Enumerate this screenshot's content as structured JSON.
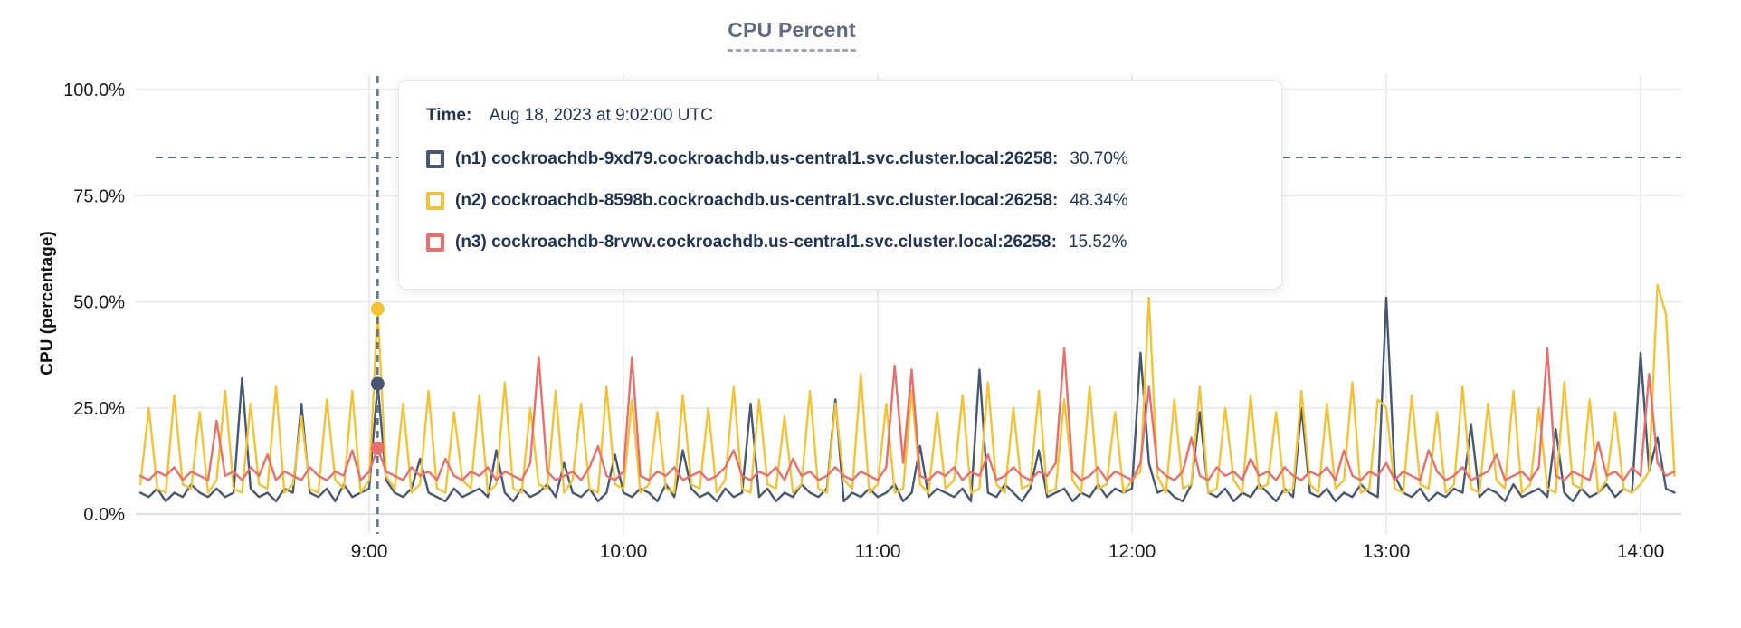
{
  "title": "CPU Percent",
  "axes": {
    "ylabel": "CPU (percentage)",
    "ytick_labels": [
      "0.0%",
      "25.0%",
      "50.0%",
      "75.0%",
      "100.0%"
    ],
    "xtick_labels": [
      "9:00",
      "10:00",
      "11:00",
      "12:00",
      "13:00",
      "14:00"
    ]
  },
  "tooltip": {
    "time_label": "Time:",
    "time_value": "Aug 18, 2023 at 9:02:00 UTC",
    "rows": [
      {
        "label": "(n1) cockroachdb-9xd79.cockroachdb.us-central1.svc.cluster.local:26258:",
        "value": "30.70%",
        "color": "#475872"
      },
      {
        "label": "(n2) cockroachdb-8598b.cockroachdb.us-central1.svc.cluster.local:26258:",
        "value": "48.34%",
        "color": "#F3C336"
      },
      {
        "label": "(n3) cockroachdb-8rvwv.cockroachdb.us-central1.svc.cluster.local:26258:",
        "value": "15.52%",
        "color": "#E8706C"
      }
    ]
  },
  "colors": {
    "title": "#5F6C87",
    "axis_text": "#1a1a1a",
    "grid": "#ececec",
    "grid_zero": "#e0e0e0",
    "guide": "#607286",
    "tooltip_text": "#1E3556",
    "background": "#FFFFFF"
  },
  "chart_data": {
    "type": "line",
    "title": "CPU Percent",
    "xlabel": "",
    "ylabel": "CPU (percentage)",
    "ylim": [
      0,
      100
    ],
    "grid": true,
    "legend_position": "tooltip",
    "yticks": {
      "percents": [
        0,
        25,
        50,
        75,
        100
      ],
      "labels": [
        "0.0%",
        "25.0%",
        "50.0%",
        "75.0%",
        "100.0%"
      ]
    },
    "xticks": {
      "minutes": [
        540,
        600,
        660,
        720,
        780,
        840
      ],
      "labels": [
        "9:00",
        "10:00",
        "11:00",
        "12:00",
        "13:00",
        "14:00"
      ]
    },
    "x_start_minute": 486,
    "x_end_minute": 848,
    "step_minutes": 2,
    "hover": {
      "minute": 542,
      "time": "Aug 18, 2023 at 9:02:00 UTC",
      "guide_percent": 84,
      "values": [
        30.7,
        48.3,
        15.5
      ]
    },
    "series": [
      {
        "name": "(n1) cockroachdb-9xd79.cockroachdb.us-central1.svc.cluster.local:26258",
        "hover_value_percent": 30.7,
        "color": "#475872",
        "values": [
          5,
          4,
          6,
          3,
          5,
          4,
          7,
          5,
          4,
          6,
          4,
          5,
          32,
          6,
          4,
          5,
          3,
          6,
          5,
          26,
          5,
          4,
          6,
          3,
          7,
          4,
          5,
          6,
          30.7,
          8,
          5,
          4,
          6,
          13,
          5,
          4,
          3,
          6,
          4,
          5,
          6,
          4,
          15,
          5,
          3,
          6,
          4,
          5,
          7,
          4,
          12,
          5,
          4,
          6,
          3,
          5,
          14,
          5,
          4,
          6,
          5,
          3,
          7,
          4,
          15,
          6,
          4,
          5,
          3,
          6,
          4,
          5,
          26,
          4,
          6,
          3,
          5,
          4,
          7,
          5,
          4,
          6,
          27,
          3,
          5,
          4,
          6,
          4,
          5,
          7,
          3,
          5,
          16,
          4,
          6,
          5,
          4,
          6,
          3,
          34,
          5,
          4,
          7,
          5,
          3,
          6,
          15,
          4,
          5,
          6,
          3,
          5,
          4,
          7,
          4,
          6,
          5,
          6,
          38,
          12,
          5,
          6,
          4,
          3,
          7,
          24,
          5,
          4,
          6,
          3,
          5,
          4,
          7,
          5,
          3,
          6,
          4,
          25,
          5,
          4,
          6,
          3,
          5,
          4,
          7,
          5,
          4,
          51,
          9,
          5,
          4,
          6,
          3,
          5,
          4,
          6,
          5,
          21,
          4,
          6,
          5,
          3,
          7,
          4,
          5,
          6,
          4,
          20,
          5,
          3,
          6,
          4,
          5,
          7,
          4,
          6,
          5,
          38,
          10,
          18,
          6,
          5
        ]
      },
      {
        "name": "(n2) cockroachdb-8598b.cockroachdb.us-central1.svc.cluster.local:26258",
        "hover_value_percent": 48.34,
        "color": "#F3C336",
        "values": [
          7,
          25,
          6,
          5,
          28,
          7,
          6,
          24,
          5,
          8,
          29,
          6,
          5,
          26,
          7,
          6,
          30,
          5,
          7,
          23,
          6,
          5,
          27,
          8,
          6,
          29,
          5,
          8,
          48.3,
          9,
          6,
          26,
          5,
          7,
          29,
          6,
          5,
          24,
          8,
          6,
          28,
          5,
          7,
          31,
          6,
          5,
          25,
          7,
          6,
          29,
          5,
          8,
          26,
          6,
          5,
          30,
          7,
          6,
          27,
          5,
          7,
          24,
          6,
          5,
          28,
          7,
          6,
          25,
          5,
          8,
          30,
          6,
          5,
          27,
          7,
          6,
          23,
          5,
          7,
          29,
          6,
          5,
          26,
          8,
          6,
          33,
          5,
          7,
          26,
          5,
          6,
          29,
          7,
          5,
          24,
          6,
          8,
          28,
          5,
          6,
          31,
          7,
          5,
          25,
          6,
          7,
          29,
          5,
          6,
          27,
          8,
          5,
          30,
          6,
          7,
          24,
          5,
          8,
          10,
          51,
          9,
          5,
          27,
          6,
          7,
          30,
          5,
          6,
          25,
          8,
          5,
          28,
          6,
          7,
          24,
          5,
          6,
          29,
          7,
          5,
          26,
          6,
          8,
          31,
          5,
          6,
          27,
          25,
          6,
          5,
          28,
          7,
          6,
          24,
          5,
          7,
          30,
          6,
          5,
          26,
          8,
          6,
          29,
          5,
          7,
          25,
          6,
          5,
          31,
          7,
          6,
          27,
          5,
          8,
          24,
          6,
          5,
          7,
          10,
          54,
          47,
          9
        ]
      },
      {
        "name": "(n3) cockroachdb-8rvwv.cockroachdb.us-central1.svc.cluster.local:26258",
        "hover_value_percent": 15.52,
        "color": "#E8706C",
        "values": [
          9,
          8,
          10,
          9,
          11,
          8,
          10,
          9,
          8,
          22,
          9,
          10,
          8,
          11,
          9,
          14,
          8,
          10,
          9,
          8,
          11,
          9,
          8,
          10,
          9,
          15,
          8,
          10,
          15.5,
          10,
          9,
          8,
          11,
          9,
          10,
          8,
          13,
          9,
          8,
          10,
          9,
          11,
          8,
          10,
          9,
          8,
          12,
          37,
          10,
          8,
          9,
          10,
          8,
          11,
          16,
          9,
          8,
          10,
          37,
          9,
          8,
          10,
          9,
          11,
          8,
          9,
          10,
          8,
          9,
          11,
          15,
          9,
          8,
          10,
          9,
          11,
          8,
          13,
          9,
          10,
          8,
          9,
          11,
          9,
          8,
          10,
          9,
          8,
          11,
          35,
          12,
          34,
          9,
          8,
          10,
          9,
          11,
          8,
          10,
          9,
          14,
          8,
          9,
          11,
          9,
          8,
          10,
          9,
          12,
          39,
          10,
          8,
          9,
          11,
          8,
          10,
          9,
          8,
          12,
          30,
          11,
          9,
          8,
          10,
          18,
          9,
          8,
          11,
          9,
          10,
          8,
          13,
          9,
          10,
          8,
          11,
          9,
          8,
          10,
          9,
          11,
          8,
          15,
          9,
          8,
          10,
          9,
          12,
          8,
          10,
          9,
          8,
          15,
          10,
          8,
          9,
          11,
          8,
          9,
          10,
          14,
          8,
          9,
          10,
          8,
          11,
          39,
          9,
          8,
          10,
          9,
          8,
          17,
          9,
          10,
          8,
          11,
          9,
          33,
          12,
          9,
          10
        ]
      }
    ]
  }
}
